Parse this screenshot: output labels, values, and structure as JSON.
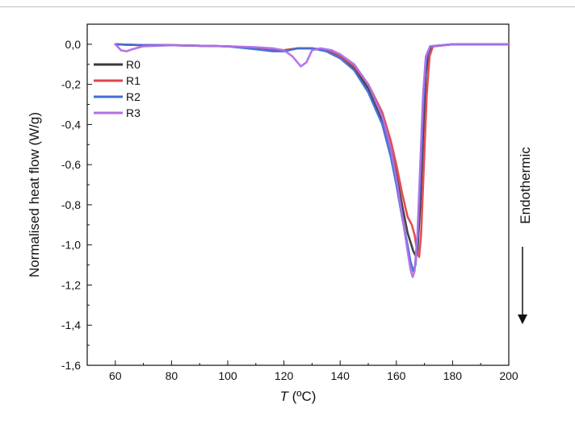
{
  "chart_data": {
    "type": "line",
    "title": "",
    "xlabel": {
      "italic": "T",
      "rest": " (ºC)"
    },
    "ylabel": "Normalised heat flow (W/g)",
    "xlim": [
      50,
      200
    ],
    "ylim": [
      -1.6,
      0.1
    ],
    "x_ticks": [
      60,
      80,
      100,
      120,
      140,
      160,
      180,
      200
    ],
    "x_tick_labels": [
      "60",
      "80",
      "100",
      "120",
      "140",
      "160",
      "180",
      "200"
    ],
    "y_ticks": [
      0.0,
      -0.2,
      -0.4,
      -0.6,
      -0.8,
      -1.0,
      -1.2,
      -1.4,
      -1.6
    ],
    "y_tick_labels": [
      "0,0",
      "-0,2",
      "-0,4",
      "-0,6",
      "-0,8",
      "-1,0",
      "-1,2",
      "-1,4",
      "-1,6"
    ],
    "grid": false,
    "legend_position": "top-left",
    "annotation": {
      "text": "Endothermic",
      "arrow": "down"
    },
    "series": [
      {
        "name": "R0",
        "color": "#3a3a3a",
        "points": [
          [
            60,
            0.0
          ],
          [
            70,
            -0.005
          ],
          [
            80,
            -0.005
          ],
          [
            100,
            -0.01
          ],
          [
            110,
            -0.02
          ],
          [
            116,
            -0.03
          ],
          [
            120,
            -0.03
          ],
          [
            125,
            -0.02
          ],
          [
            130,
            -0.02
          ],
          [
            135,
            -0.03
          ],
          [
            140,
            -0.06
          ],
          [
            145,
            -0.12
          ],
          [
            150,
            -0.22
          ],
          [
            155,
            -0.38
          ],
          [
            158,
            -0.52
          ],
          [
            160,
            -0.65
          ],
          [
            162,
            -0.8
          ],
          [
            164,
            -0.94
          ],
          [
            166,
            -1.03
          ],
          [
            166.7,
            -1.05
          ],
          [
            167.5,
            -1.03
          ],
          [
            168.5,
            -0.8
          ],
          [
            169.5,
            -0.45
          ],
          [
            170.5,
            -0.15
          ],
          [
            171.5,
            -0.04
          ],
          [
            173,
            -0.01
          ],
          [
            180,
            0.0
          ],
          [
            200,
            0.0
          ]
        ]
      },
      {
        "name": "R1",
        "color": "#e0454a",
        "points": [
          [
            60,
            0.0
          ],
          [
            70,
            -0.005
          ],
          [
            80,
            -0.005
          ],
          [
            100,
            -0.01
          ],
          [
            110,
            -0.02
          ],
          [
            116,
            -0.03
          ],
          [
            120,
            -0.03
          ],
          [
            125,
            -0.02
          ],
          [
            130,
            -0.02
          ],
          [
            135,
            -0.03
          ],
          [
            140,
            -0.06
          ],
          [
            145,
            -0.11
          ],
          [
            150,
            -0.2
          ],
          [
            155,
            -0.34
          ],
          [
            158,
            -0.48
          ],
          [
            160,
            -0.6
          ],
          [
            162,
            -0.74
          ],
          [
            164,
            -0.86
          ],
          [
            165.5,
            -0.9
          ],
          [
            166.5,
            -0.95
          ],
          [
            167.5,
            -1.04
          ],
          [
            168.1,
            -1.06
          ],
          [
            168.8,
            -0.95
          ],
          [
            169.8,
            -0.6
          ],
          [
            170.8,
            -0.25
          ],
          [
            171.8,
            -0.06
          ],
          [
            173,
            -0.01
          ],
          [
            180,
            0.0
          ],
          [
            200,
            0.0
          ]
        ]
      },
      {
        "name": "R2",
        "color": "#3f6fd6",
        "points": [
          [
            60,
            0.0
          ],
          [
            70,
            -0.005
          ],
          [
            80,
            -0.005
          ],
          [
            100,
            -0.01
          ],
          [
            110,
            -0.025
          ],
          [
            116,
            -0.035
          ],
          [
            120,
            -0.035
          ],
          [
            125,
            -0.02
          ],
          [
            130,
            -0.02
          ],
          [
            135,
            -0.035
          ],
          [
            140,
            -0.07
          ],
          [
            145,
            -0.13
          ],
          [
            150,
            -0.24
          ],
          [
            155,
            -0.4
          ],
          [
            158,
            -0.56
          ],
          [
            160,
            -0.7
          ],
          [
            162,
            -0.86
          ],
          [
            164,
            -1.0
          ],
          [
            165,
            -1.08
          ],
          [
            166,
            -1.13
          ],
          [
            166.8,
            -1.1
          ],
          [
            167.6,
            -0.95
          ],
          [
            168.6,
            -0.65
          ],
          [
            169.6,
            -0.3
          ],
          [
            170.6,
            -0.08
          ],
          [
            172,
            -0.01
          ],
          [
            180,
            0.0
          ],
          [
            200,
            0.0
          ]
        ]
      },
      {
        "name": "R3",
        "color": "#b070e8",
        "points": [
          [
            60,
            0.0
          ],
          [
            62,
            -0.03
          ],
          [
            64,
            -0.035
          ],
          [
            66,
            -0.025
          ],
          [
            70,
            -0.01
          ],
          [
            80,
            -0.005
          ],
          [
            100,
            -0.01
          ],
          [
            110,
            -0.015
          ],
          [
            116,
            -0.02
          ],
          [
            120,
            -0.03
          ],
          [
            123,
            -0.06
          ],
          [
            126,
            -0.11
          ],
          [
            128,
            -0.09
          ],
          [
            130,
            -0.03
          ],
          [
            133,
            -0.02
          ],
          [
            137,
            -0.03
          ],
          [
            140,
            -0.05
          ],
          [
            145,
            -0.1
          ],
          [
            150,
            -0.2
          ],
          [
            155,
            -0.36
          ],
          [
            158,
            -0.52
          ],
          [
            160,
            -0.67
          ],
          [
            162,
            -0.85
          ],
          [
            164,
            -1.03
          ],
          [
            165,
            -1.12
          ],
          [
            165.8,
            -1.16
          ],
          [
            166.5,
            -1.13
          ],
          [
            167.5,
            -0.95
          ],
          [
            168.5,
            -0.6
          ],
          [
            169.5,
            -0.25
          ],
          [
            170.5,
            -0.06
          ],
          [
            172,
            -0.01
          ],
          [
            180,
            0.0
          ],
          [
            200,
            0.0
          ]
        ]
      }
    ]
  }
}
